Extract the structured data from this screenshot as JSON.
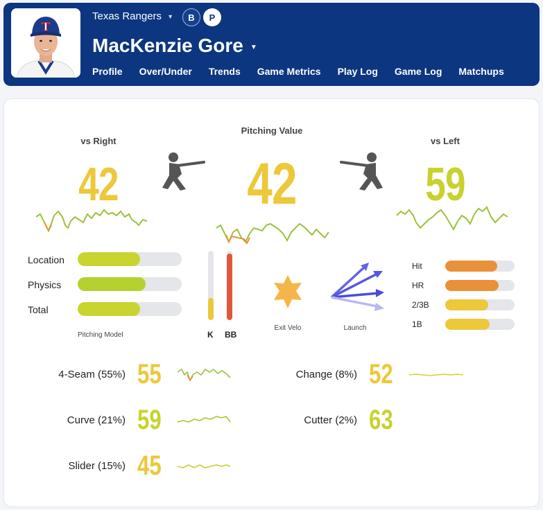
{
  "header": {
    "team": "Texas Rangers",
    "badges": [
      "B",
      "P"
    ],
    "player_name": "MacKenzie Gore",
    "nav": [
      "Profile",
      "Over/Under",
      "Trends",
      "Game Metrics",
      "Play Log",
      "Game Log",
      "Matchups"
    ],
    "active_nav": "Profile",
    "team_logo_letter": "T"
  },
  "summary": {
    "vs_right": {
      "label": "vs Right",
      "value": "42"
    },
    "pitching_value": {
      "label": "Pitching Value",
      "value": "42"
    },
    "vs_left": {
      "label": "vs Left",
      "value": "59"
    }
  },
  "model": {
    "rows": [
      {
        "label": "Location",
        "level": 0.6
      },
      {
        "label": "Physics",
        "level": 0.65
      },
      {
        "label": "Total",
        "level": 0.6
      }
    ],
    "caption": "Pitching Model"
  },
  "kbb": {
    "k": {
      "label": "K",
      "level": 0.32
    },
    "bb": {
      "label": "BB",
      "level": 0.96
    }
  },
  "contact": {
    "exit_velo": "Exit Velo",
    "launch": "Launch"
  },
  "outcomes": [
    {
      "label": "Hit",
      "level": 0.75,
      "color": "#e8913a"
    },
    {
      "label": "HR",
      "level": 0.77,
      "color": "#e8913a"
    },
    {
      "label": "2/3B",
      "level": 0.62,
      "color": "#ecc83a"
    },
    {
      "label": "1B",
      "level": 0.64,
      "color": "#ecc83a"
    }
  ],
  "pitches": [
    {
      "label": "4-Seam (55%)",
      "value": "55"
    },
    {
      "label": "Curve (21%)",
      "value": "59"
    },
    {
      "label": "Slider (15%)",
      "value": "45"
    },
    {
      "label": "Change (8%)",
      "value": "52"
    },
    {
      "label": "Cutter (2%)",
      "value": "63"
    }
  ],
  "colors": {
    "header_bg": "#0c3680",
    "value_yellow": "#ecc83a",
    "value_lime": "#c8d22e",
    "model_fill": "#c7d52e",
    "bb_fill": "#e0583a",
    "k_fill": "#ecc83a",
    "exit_velo": "#f5b548",
    "launch_arrows": "#5a5ae8"
  }
}
